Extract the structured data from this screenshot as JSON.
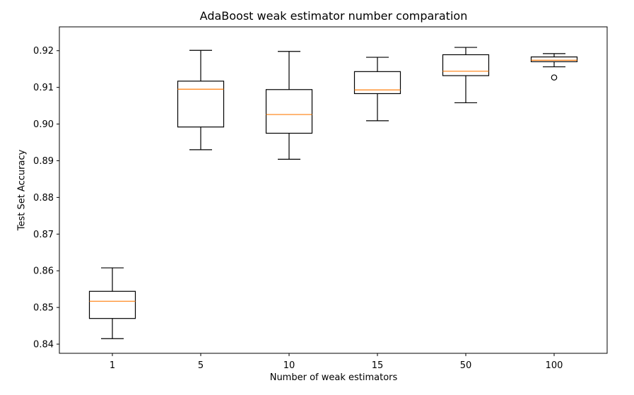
{
  "chart_data": {
    "type": "boxplot",
    "title": "AdaBoost weak estimator number comparation",
    "xlabel": "Number of weak estimators",
    "ylabel": "Test Set Accuracy",
    "ylim": [
      0.8375,
      0.9265
    ],
    "yticks": [
      0.84,
      0.85,
      0.86,
      0.87,
      0.88,
      0.89,
      0.9,
      0.91,
      0.92
    ],
    "ytick_labels": [
      "0.84",
      "0.85",
      "0.86",
      "0.87",
      "0.88",
      "0.89",
      "0.90",
      "0.91",
      "0.92"
    ],
    "categories": [
      "1",
      "5",
      "10",
      "15",
      "50",
      "100"
    ],
    "boxes": [
      {
        "label": "1",
        "whisker_low": 0.8415,
        "q1": 0.847,
        "median": 0.8517,
        "q3": 0.8544,
        "whisker_high": 0.8608,
        "outliers": []
      },
      {
        "label": "5",
        "whisker_low": 0.893,
        "q1": 0.8992,
        "median": 0.9095,
        "q3": 0.9117,
        "whisker_high": 0.9201,
        "outliers": []
      },
      {
        "label": "10",
        "whisker_low": 0.8904,
        "q1": 0.8975,
        "median": 0.9026,
        "q3": 0.9094,
        "whisker_high": 0.9198,
        "outliers": []
      },
      {
        "label": "15",
        "whisker_low": 0.9009,
        "q1": 0.9083,
        "median": 0.9093,
        "q3": 0.9143,
        "whisker_high": 0.9182,
        "outliers": []
      },
      {
        "label": "50",
        "whisker_low": 0.9058,
        "q1": 0.9132,
        "median": 0.9144,
        "q3": 0.9189,
        "whisker_high": 0.9209,
        "outliers": []
      },
      {
        "label": "100",
        "whisker_low": 0.9156,
        "q1": 0.917,
        "median": 0.9174,
        "q3": 0.9183,
        "whisker_high": 0.9192,
        "outliers": [
          0.9127
        ]
      }
    ],
    "grid": false,
    "legend": "none",
    "colors": {
      "box": "#000000",
      "median": "#ff7f0e",
      "background": "#ffffff"
    }
  }
}
